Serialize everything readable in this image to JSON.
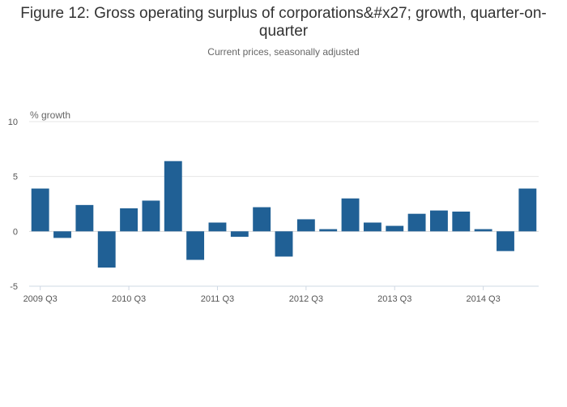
{
  "chart_data": {
    "type": "bar",
    "title": "Figure 12: Gross operating surplus of corporations&#x27; growth, quarter-on-quarter",
    "subtitle": "Current prices, seasonally adjusted",
    "ylabel": "% growth",
    "xlabel": "",
    "ylim": [
      -5,
      10
    ],
    "yticks": [
      -5,
      0,
      5,
      10
    ],
    "grid": true,
    "color": "#206095",
    "categories": [
      "2009 Q3",
      "2009 Q4",
      "2010 Q1",
      "2010 Q2",
      "2010 Q3",
      "2010 Q4",
      "2011 Q1",
      "2011 Q2",
      "2011 Q3",
      "2011 Q4",
      "2012 Q1",
      "2012 Q2",
      "2012 Q3",
      "2012 Q4",
      "2013 Q1",
      "2013 Q2",
      "2013 Q3",
      "2013 Q4",
      "2014 Q1",
      "2014 Q2",
      "2014 Q3",
      "2014 Q4",
      "2015 Q1"
    ],
    "xtick_labels": [
      "2009 Q3",
      "2010 Q3",
      "2011 Q3",
      "2012 Q3",
      "2013 Q3",
      "2014 Q3"
    ],
    "values": [
      3.9,
      -0.6,
      2.4,
      -3.3,
      2.1,
      2.8,
      6.4,
      -2.6,
      0.8,
      -0.5,
      2.2,
      -2.3,
      1.1,
      0.2,
      3.0,
      0.8,
      0.5,
      1.6,
      1.9,
      1.8,
      0.2,
      -1.8,
      3.9
    ]
  }
}
